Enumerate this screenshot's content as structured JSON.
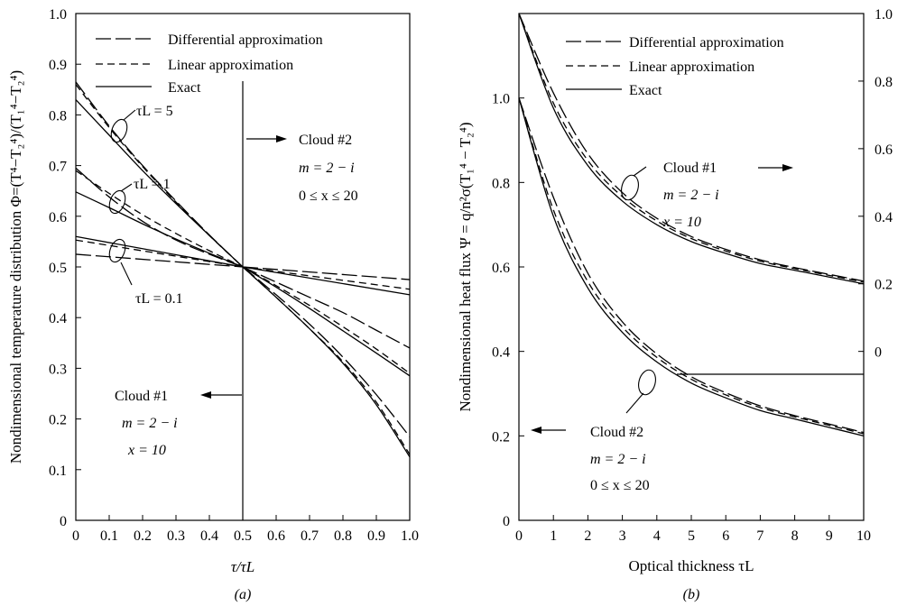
{
  "chart_data": [
    {
      "type": "line",
      "caption": "(a)",
      "xlabel": "τ/τL",
      "ylabel": "Nondimensional temperature distribution Φ=(T⁴−T₂⁴)/(T₁⁴−T₂⁴)",
      "xlim": [
        0,
        1.0
      ],
      "ylim": [
        0,
        1.0
      ],
      "x_ticks": [
        "0",
        "0.1",
        "0.2",
        "0.3",
        "0.4",
        "0.5",
        "0.6",
        "0.7",
        "0.8",
        "0.9",
        "1.0"
      ],
      "y_ticks": [
        "0",
        "0.1",
        "0.2",
        "0.3",
        "0.4",
        "0.5",
        "0.6",
        "0.7",
        "0.8",
        "0.9",
        "1.0"
      ],
      "grid": false,
      "legend": {
        "position": "top-right",
        "entries": [
          {
            "style": "long-dash",
            "label": "Differential approximation"
          },
          {
            "style": "short-dash",
            "label": "Linear approximation"
          },
          {
            "style": "solid",
            "label": "Exact"
          }
        ]
      },
      "curve_labels": [
        "τL = 5",
        "τL = 1",
        "τL = 0.1"
      ],
      "annotations": {
        "cloud2": [
          "Cloud #2",
          "m = 2 − i",
          "0 ≤ x ≤ 20"
        ],
        "cloud1": [
          "Cloud #1",
          "m = 2 − i",
          "x = 10"
        ]
      },
      "series": [
        {
          "tau_L": 5,
          "style": "solid",
          "x": [
            0,
            0.1,
            0.2,
            0.3,
            0.4,
            0.5
          ],
          "y": [
            0.83,
            0.76,
            0.69,
            0.625,
            0.562,
            0.5
          ]
        },
        {
          "tau_L": 5,
          "style": "short-dash",
          "x": [
            0,
            0.1,
            0.2,
            0.3,
            0.4,
            0.5
          ],
          "y": [
            0.86,
            0.775,
            0.698,
            0.628,
            0.562,
            0.5
          ]
        },
        {
          "tau_L": 5,
          "style": "long-dash",
          "x": [
            0,
            0.1,
            0.2,
            0.3,
            0.4,
            0.5
          ],
          "y": [
            0.865,
            0.778,
            0.7,
            0.63,
            0.563,
            0.5
          ]
        },
        {
          "tau_L": 1,
          "style": "solid",
          "x": [
            0,
            0.1,
            0.2,
            0.3,
            0.4,
            0.5
          ],
          "y": [
            0.648,
            0.617,
            0.585,
            0.555,
            0.527,
            0.5
          ]
        },
        {
          "tau_L": 1,
          "style": "short-dash",
          "x": [
            0,
            0.1,
            0.2,
            0.3,
            0.4,
            0.5
          ],
          "y": [
            0.69,
            0.645,
            0.603,
            0.566,
            0.532,
            0.5
          ]
        },
        {
          "tau_L": 1,
          "style": "long-dash",
          "x": [
            0,
            0.1,
            0.2,
            0.3,
            0.4,
            0.5
          ],
          "y": [
            0.695,
            0.638,
            0.59,
            0.553,
            0.525,
            0.5
          ]
        },
        {
          "tau_L": 0.1,
          "style": "solid",
          "x": [
            0,
            0.5
          ],
          "y": [
            0.56,
            0.5
          ]
        },
        {
          "tau_L": 0.1,
          "style": "short-dash",
          "x": [
            0,
            0.5
          ],
          "y": [
            0.553,
            0.5
          ]
        },
        {
          "tau_L": 0.1,
          "style": "long-dash",
          "x": [
            0,
            0.5
          ],
          "y": [
            0.525,
            0.5
          ]
        },
        {
          "cloud": 1,
          "tau_L": 0.1,
          "style": "solid",
          "x": [
            0.5,
            1.0
          ],
          "y": [
            0.5,
            0.445
          ]
        },
        {
          "cloud": 1,
          "tau_L": 0.1,
          "style": "short-dash",
          "x": [
            0.5,
            1.0
          ],
          "y": [
            0.5,
            0.456
          ]
        },
        {
          "cloud": 1,
          "tau_L": 0.1,
          "style": "long-dash",
          "x": [
            0.5,
            1.0
          ],
          "y": [
            0.5,
            0.475
          ]
        },
        {
          "cloud": 1,
          "tau_L": 1,
          "style": "solid",
          "x": [
            0.5,
            0.6,
            0.7,
            0.8,
            0.9,
            1.0
          ],
          "y": [
            0.5,
            0.46,
            0.418,
            0.374,
            0.33,
            0.285
          ]
        },
        {
          "cloud": 1,
          "tau_L": 1,
          "style": "short-dash",
          "x": [
            0.5,
            0.6,
            0.7,
            0.8,
            0.9,
            1.0
          ],
          "y": [
            0.5,
            0.463,
            0.424,
            0.382,
            0.338,
            0.29
          ]
        },
        {
          "cloud": 1,
          "tau_L": 1,
          "style": "long-dash",
          "x": [
            0.5,
            0.6,
            0.7,
            0.8,
            0.9,
            1.0
          ],
          "y": [
            0.5,
            0.47,
            0.44,
            0.41,
            0.375,
            0.34
          ]
        },
        {
          "cloud": 1,
          "tau_L": 5,
          "style": "solid",
          "x": [
            0.5,
            0.6,
            0.7,
            0.8,
            0.9,
            1.0
          ],
          "y": [
            0.5,
            0.44,
            0.378,
            0.31,
            0.228,
            0.125
          ]
        },
        {
          "cloud": 1,
          "tau_L": 5,
          "style": "short-dash",
          "x": [
            0.5,
            0.6,
            0.7,
            0.8,
            0.9,
            1.0
          ],
          "y": [
            0.5,
            0.44,
            0.378,
            0.313,
            0.233,
            0.13
          ]
        },
        {
          "cloud": 1,
          "tau_L": 5,
          "style": "long-dash",
          "x": [
            0.5,
            0.6,
            0.7,
            0.8,
            0.9,
            1.0
          ],
          "y": [
            0.5,
            0.445,
            0.387,
            0.322,
            0.248,
            0.165
          ]
        }
      ]
    },
    {
      "type": "line",
      "caption": "(b)",
      "xlabel": "Optical thickness τL",
      "ylabel": "Nondimensional heat flux Ψ = q/n²σ(T₁⁴ − T₂⁴)",
      "xlim": [
        0,
        10
      ],
      "ylim": [
        0,
        1.2
      ],
      "x_ticks": [
        "0",
        "1",
        "2",
        "3",
        "4",
        "5",
        "6",
        "7",
        "8",
        "9",
        "10"
      ],
      "y_ticks_left": [
        "0",
        "0.2",
        "0.4",
        "0.6",
        "0.8",
        "1.0"
      ],
      "y_ticks_right": [
        "0",
        "0.2",
        "0.4",
        "0.6",
        "0.8",
        "1.0"
      ],
      "right_axis_baseline": 0.4,
      "grid": false,
      "legend": {
        "position": "top",
        "entries": [
          {
            "style": "long-dash",
            "label": "Differential approximation"
          },
          {
            "style": "short-dash",
            "label": "Linear approximation"
          },
          {
            "style": "solid",
            "label": "Exact"
          }
        ]
      },
      "annotations": {
        "cloud1": [
          "Cloud #1",
          "m = 2 − i",
          "x = 10"
        ],
        "cloud2": [
          "Cloud #2",
          "m = 2 − i",
          "0 ≤ x ≤ 20"
        ]
      },
      "series": [
        {
          "cloud": 1,
          "axis": "right",
          "style": "solid",
          "x": [
            0,
            1,
            2,
            3,
            4,
            5,
            6,
            7,
            8,
            9,
            10
          ],
          "y": [
            1.0,
            0.72,
            0.55,
            0.445,
            0.375,
            0.325,
            0.29,
            0.26,
            0.24,
            0.22,
            0.2
          ]
        },
        {
          "cloud": 1,
          "axis": "right",
          "style": "short-dash",
          "x": [
            0,
            1,
            2,
            3,
            4,
            5,
            6,
            7,
            8,
            9,
            10
          ],
          "y": [
            1.0,
            0.735,
            0.565,
            0.458,
            0.386,
            0.334,
            0.297,
            0.267,
            0.245,
            0.225,
            0.205
          ]
        },
        {
          "cloud": 1,
          "axis": "right",
          "style": "long-dash",
          "x": [
            0,
            1,
            2,
            3,
            4,
            5,
            6,
            7,
            8,
            9,
            10
          ],
          "y": [
            1.0,
            0.765,
            0.585,
            0.47,
            0.394,
            0.34,
            0.302,
            0.271,
            0.248,
            0.228,
            0.208
          ]
        },
        {
          "cloud": 2,
          "axis": "left",
          "style": "solid",
          "x": [
            0,
            1,
            2,
            3,
            4,
            5,
            6,
            7,
            8,
            9,
            10
          ],
          "y": [
            1.0,
            0.72,
            0.55,
            0.445,
            0.375,
            0.325,
            0.29,
            0.26,
            0.24,
            0.22,
            0.2
          ]
        },
        {
          "cloud": 2,
          "axis": "left",
          "style": "short-dash",
          "x": [
            0,
            1,
            2,
            3,
            4,
            5,
            6,
            7,
            8,
            9,
            10
          ],
          "y": [
            1.0,
            0.735,
            0.565,
            0.458,
            0.386,
            0.334,
            0.297,
            0.267,
            0.245,
            0.225,
            0.205
          ]
        },
        {
          "cloud": 2,
          "axis": "left",
          "style": "long-dash",
          "x": [
            0,
            1,
            2,
            3,
            4,
            5,
            6,
            7,
            8,
            9,
            10
          ],
          "y": [
            1.0,
            0.765,
            0.585,
            0.47,
            0.394,
            0.34,
            0.302,
            0.271,
            0.248,
            0.228,
            0.208
          ]
        }
      ]
    }
  ]
}
